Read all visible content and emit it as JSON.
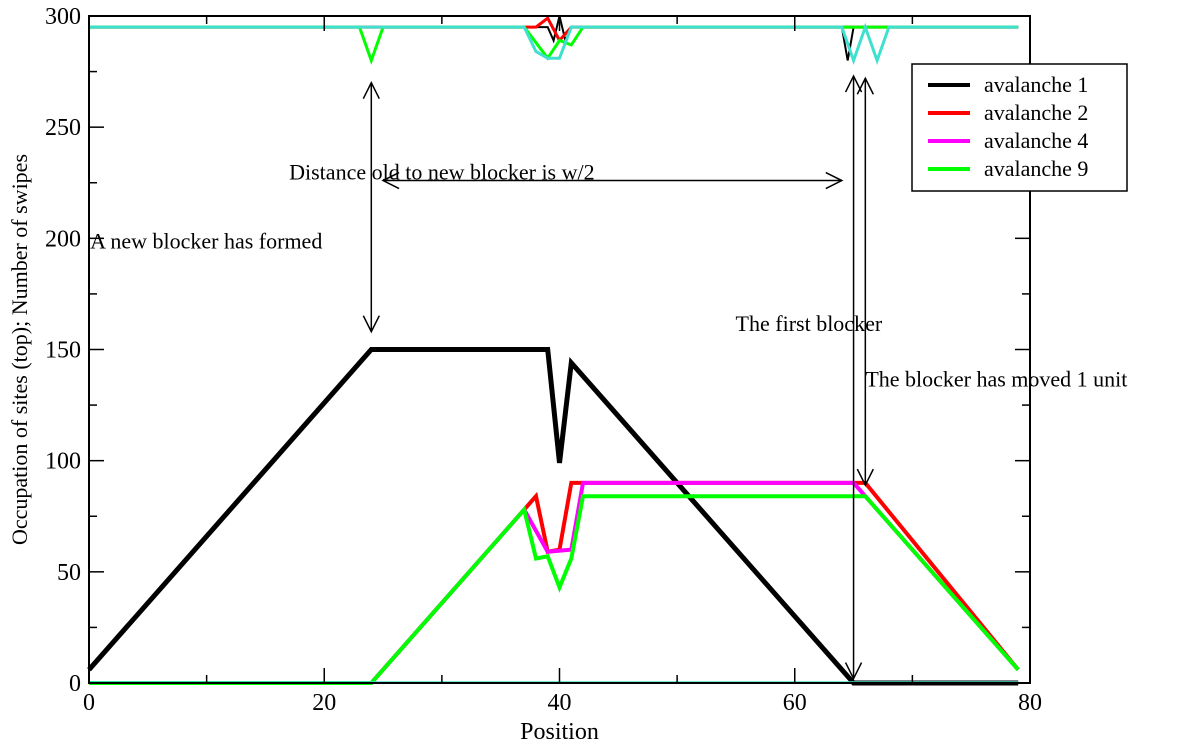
{
  "chart_data": {
    "type": "line",
    "xlabel": "Position",
    "ylabel": "Occupation of sites (top); Number of swipes",
    "xlim": [
      0,
      80
    ],
    "ylim": [
      0,
      300
    ],
    "x_ticks": [
      0,
      20,
      40,
      60,
      80
    ],
    "y_ticks": [
      0,
      50,
      100,
      150,
      200,
      250,
      300
    ],
    "x_tick_labels": [
      "0",
      "20",
      "40",
      "60",
      "80"
    ],
    "y_tick_labels": [
      "0",
      "50",
      "100",
      "150",
      "200",
      "250",
      "300"
    ],
    "grid": false,
    "legend_position": "top-right",
    "legend": [
      {
        "label": "avalanche 1",
        "color": "#000000"
      },
      {
        "label": "avalanche 2",
        "color": "#ff0000"
      },
      {
        "label": "avalanche 4",
        "color": "#ff00ff"
      },
      {
        "label": "avalanche 9",
        "color": "#00ff00"
      }
    ],
    "series": [
      {
        "name": "avalanche 1",
        "color": "#000000",
        "width": 5,
        "points": [
          [
            0,
            6
          ],
          [
            24,
            150
          ],
          [
            39,
            150
          ],
          [
            40,
            99
          ],
          [
            41,
            144
          ],
          [
            65,
            0
          ],
          [
            79,
            0
          ]
        ]
      },
      {
        "name": "avalanche 2",
        "color": "#ff0000",
        "width": 4,
        "points": [
          [
            0,
            0
          ],
          [
            24,
            0
          ],
          [
            37,
            78
          ],
          [
            38,
            84
          ],
          [
            39,
            59
          ],
          [
            40,
            60
          ],
          [
            41,
            90
          ],
          [
            65,
            90
          ],
          [
            66,
            90
          ],
          [
            79,
            6
          ]
        ]
      },
      {
        "name": "avalanche 4",
        "color": "#ff00ff",
        "width": 4,
        "points": [
          [
            0,
            0
          ],
          [
            24,
            0
          ],
          [
            37,
            78
          ],
          [
            39,
            59
          ],
          [
            41,
            60
          ],
          [
            42,
            90
          ],
          [
            65,
            90
          ],
          [
            66,
            84
          ],
          [
            79,
            6
          ]
        ]
      },
      {
        "name": "avalanche 9",
        "color": "#00ff00",
        "width": 4,
        "points": [
          [
            0,
            0
          ],
          [
            24,
            0
          ],
          [
            37,
            78
          ],
          [
            38,
            56
          ],
          [
            39,
            57
          ],
          [
            40,
            43
          ],
          [
            41,
            56
          ],
          [
            42,
            84
          ],
          [
            66,
            84
          ],
          [
            79,
            6
          ]
        ]
      },
      {
        "color": "#000000",
        "width": 2,
        "points": [
          [
            0,
            295
          ],
          [
            39,
            295
          ],
          [
            39.5,
            289
          ],
          [
            40,
            300
          ],
          [
            40.5,
            289
          ],
          [
            41,
            295
          ],
          [
            64,
            295
          ],
          [
            64.5,
            280
          ],
          [
            65,
            295
          ],
          [
            79,
            295
          ]
        ]
      },
      {
        "color": "#ff0000",
        "width": 3,
        "points": [
          [
            0,
            295
          ],
          [
            38,
            295
          ],
          [
            39,
            299
          ],
          [
            40,
            289
          ],
          [
            41,
            295
          ],
          [
            79,
            295
          ]
        ]
      },
      {
        "color": "#00ff00",
        "width": 3,
        "points": [
          [
            0,
            295
          ],
          [
            23,
            295
          ],
          [
            24,
            280
          ],
          [
            25,
            295
          ],
          [
            37,
            295
          ],
          [
            38,
            288
          ],
          [
            39,
            281
          ],
          [
            40,
            289
          ],
          [
            41,
            287
          ],
          [
            42,
            295
          ],
          [
            65,
            295
          ],
          [
            66,
            295
          ],
          [
            67,
            295
          ],
          [
            79,
            295
          ]
        ]
      },
      {
        "color": "#40e0d0",
        "width": 3,
        "points": [
          [
            0,
            295
          ],
          [
            37,
            295
          ],
          [
            38,
            284
          ],
          [
            39,
            281
          ],
          [
            40,
            281
          ],
          [
            41,
            295
          ],
          [
            64,
            295
          ],
          [
            65,
            280
          ],
          [
            66,
            295
          ],
          [
            67,
            280
          ],
          [
            68,
            295
          ],
          [
            79,
            295
          ]
        ]
      },
      {
        "color": "#40e0d0",
        "width": 2,
        "points": [
          [
            0,
            0.3
          ],
          [
            79,
            0.3
          ]
        ]
      }
    ],
    "arrows": [
      {
        "name": "blocker-formed-arrow",
        "type": "double",
        "from": [
          24,
          270
        ],
        "to": [
          24,
          158
        ]
      },
      {
        "name": "distance-arrow",
        "type": "double",
        "from": [
          25,
          226
        ],
        "to": [
          64,
          226
        ]
      },
      {
        "name": "first-blocker-arrow",
        "type": "double",
        "from": [
          65,
          273
        ],
        "to": [
          65,
          2
        ]
      },
      {
        "name": "blocker-moved-arrow",
        "type": "double",
        "from": [
          66,
          272
        ],
        "to": [
          66,
          89
        ]
      }
    ],
    "annotations": [
      {
        "name": "annotation-new-blocker",
        "text": "A new blocker has formed"
      },
      {
        "name": "annotation-distance",
        "text": "Distance old to new blocker is w/2"
      },
      {
        "name": "annotation-first-blocker",
        "text": "The first blocker"
      },
      {
        "name": "annotation-blocker-moved",
        "text": "The blocker has moved 1 unit"
      }
    ]
  }
}
